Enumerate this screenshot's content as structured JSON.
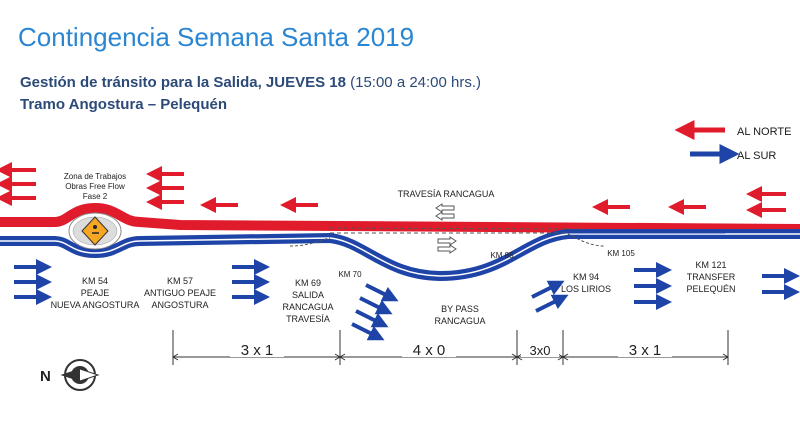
{
  "header": {
    "title": "Contingencia Semana Santa 2019",
    "subtitle_bold": "Gestión de tránsito para la Salida, JUEVES 18",
    "subtitle_normal": " (15:00 a 24:00 hrs.)",
    "section": "Tramo Angostura – Pelequén"
  },
  "legend": {
    "north": "AL NORTE",
    "south": "AL SUR",
    "north_color": "#e01b2b",
    "south_color": "#1f44a8"
  },
  "work_zone": {
    "line1": "Zona de Trabajos",
    "line2": "Obras Free Flow",
    "line3": "Fase 2"
  },
  "travesia": "TRAVESÍA RANCAGUA",
  "landmarks": {
    "km54": {
      "km": "KM 54",
      "l1": "PEAJE",
      "l2": "NUEVA ANGOSTURA"
    },
    "km57": {
      "km": "KM 57",
      "l1": "ANTIGUO PEAJE",
      "l2": "ANGOSTURA"
    },
    "km69": {
      "km": "KM 69",
      "l1": "SALIDA",
      "l2": "RANCAGUA",
      "l3": "TRAVESÍA"
    },
    "km70": {
      "km": "KM 70"
    },
    "km85": {
      "km": "KM 85"
    },
    "bypass": {
      "l1": "BY PASS",
      "l2": "RANCAGUA"
    },
    "km94": {
      "km": "KM 94",
      "l1": "LOS LIRIOS"
    },
    "km105": {
      "km": "KM 105"
    },
    "km121": {
      "km": "KM 121",
      "l1": "TRANSFER",
      "l2": "PELEQUÉN"
    }
  },
  "lane_configs": [
    "3 x 1",
    "4 x 0",
    "3x0",
    "3 x 1"
  ],
  "compass": {
    "label": "N"
  }
}
